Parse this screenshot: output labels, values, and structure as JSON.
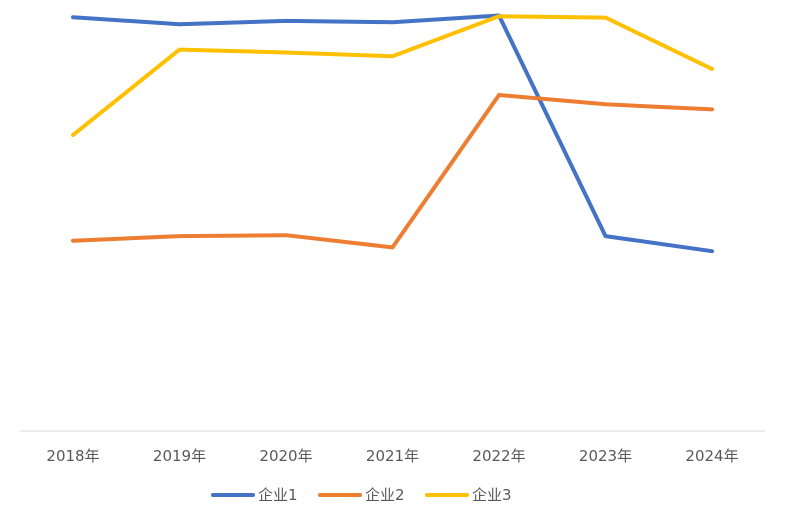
{
  "chart_data": {
    "type": "line",
    "categories": [
      "2018年",
      "2019年",
      "2020年",
      "2021年",
      "2022年",
      "2023年",
      "2024年"
    ],
    "ylim": [
      0,
      1
    ],
    "grid": false,
    "legend_position": "bottom",
    "series": [
      {
        "name": "企业1",
        "color": "#4472C4",
        "values": [
          0.983,
          0.966,
          0.974,
          0.971,
          0.987,
          0.463,
          0.427
        ]
      },
      {
        "name": "企业2",
        "color": "#ED7D31",
        "values": [
          0.452,
          0.463,
          0.465,
          0.436,
          0.798,
          0.776,
          0.764
        ]
      },
      {
        "name": "企业3",
        "color": "#FFC000",
        "values": [
          0.703,
          0.906,
          0.899,
          0.89,
          0.985,
          0.982,
          0.86
        ]
      }
    ]
  }
}
